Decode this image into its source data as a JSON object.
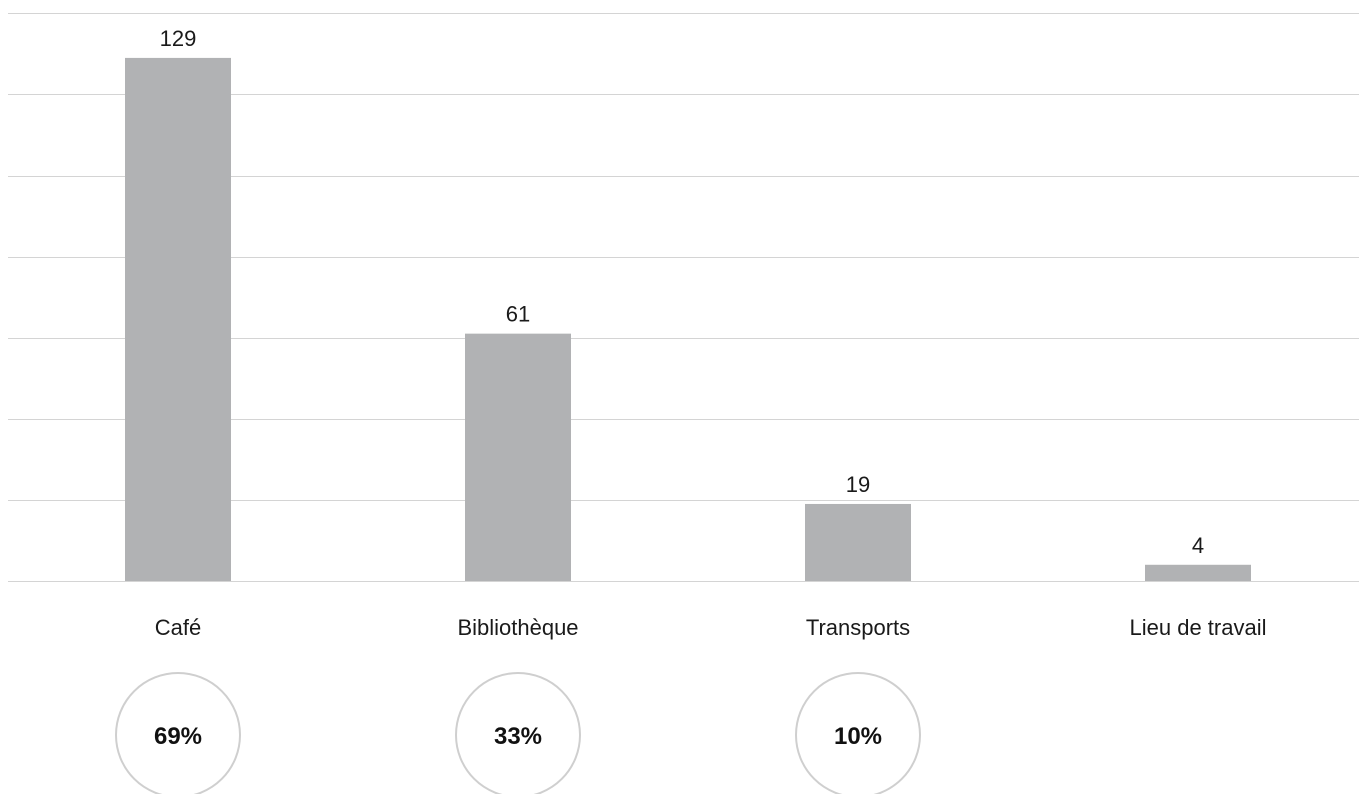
{
  "chart_data": {
    "type": "bar",
    "title": "",
    "xlabel": "",
    "ylabel": "",
    "categories": [
      "Café",
      "Bibliothèque",
      "Transports",
      "Lieu de travail"
    ],
    "values": [
      129,
      61,
      19,
      4
    ],
    "value_labels": [
      "129",
      "61",
      "19",
      "4"
    ],
    "percentages": [
      "69%",
      "33%",
      "10%",
      ""
    ],
    "ylim": [
      0,
      140
    ],
    "gridline_step": 20,
    "grid": true,
    "legend": "none",
    "colors": {
      "bar": "#b1b2b4",
      "grid": "#d4d4d4",
      "circle_stroke": "#cfcfcf"
    }
  }
}
